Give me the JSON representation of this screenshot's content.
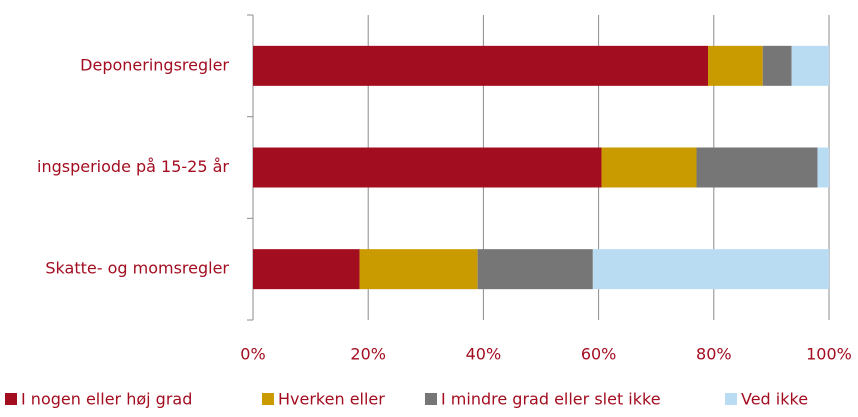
{
  "chart_data": {
    "type": "stacked-barh",
    "categories": [
      "Deponeringsregler",
      "ingsperiode på 15-25 år",
      "Skatte- og momsregler"
    ],
    "series": [
      {
        "name": "I nogen eller høj grad",
        "color": "#a30d20",
        "values": [
          79,
          60.5,
          18.5
        ]
      },
      {
        "name": "Hverken eller",
        "color": "#c99b00",
        "values": [
          9.5,
          16.5,
          20.5
        ]
      },
      {
        "name": "I mindre grad eller slet ikke",
        "color": "#767676",
        "values": [
          5,
          21,
          20
        ]
      },
      {
        "name": "Ved ikke",
        "color": "#badcf2",
        "values": [
          6.5,
          2,
          41
        ]
      }
    ],
    "xlim": [
      0,
      100
    ],
    "xticks": [
      {
        "value": 0,
        "label": "0%"
      },
      {
        "value": 20,
        "label": "20%"
      },
      {
        "value": 40,
        "label": "40%"
      },
      {
        "value": 60,
        "label": "60%"
      },
      {
        "value": 80,
        "label": "80%"
      },
      {
        "value": 100,
        "label": "100%"
      }
    ],
    "grid": true,
    "legend": "bottom"
  }
}
